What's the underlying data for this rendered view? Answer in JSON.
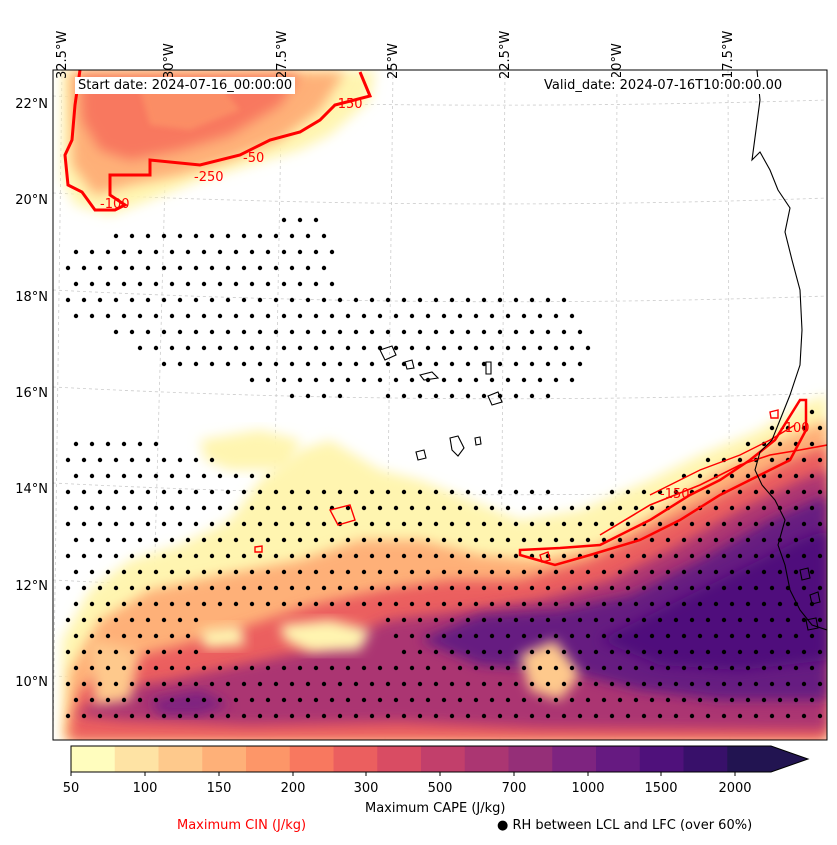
{
  "map": {
    "start_date": "Start date: 2024-07-16_00:00:00",
    "valid_date": "Valid_date: 2024-07-16T10:00:00.00",
    "lon_labels": [
      "32.5°W",
      "30°W",
      "27.5°W",
      "25°W",
      "22.5°W",
      "20°W",
      "17.5°W"
    ],
    "lat_labels": [
      "22°N",
      "20°N",
      "18°N",
      "16°N",
      "14°N",
      "12°N",
      "10°N"
    ],
    "cin_contour_labels": [
      "-150",
      "-50",
      "-250",
      "-100",
      "-100",
      "-150"
    ],
    "colors": {
      "cin_contour": "#ff0000",
      "coastline": "#000000",
      "rh_dots": "#000000",
      "gridlines": "#cccccc"
    }
  },
  "colorbar": {
    "levels": [
      "50",
      "100",
      "150",
      "200",
      "300",
      "500",
      "700",
      "1000",
      "1500",
      "2000"
    ],
    "colors": [
      "#fffdbe",
      "#fee3a4",
      "#fec98c",
      "#feb078",
      "#fd9668",
      "#f8785f",
      "#eb5f5f",
      "#d94c63",
      "#c23f6b",
      "#ab3672",
      "#952f78",
      "#7e2480",
      "#661a81",
      "#4f117b",
      "#38106a",
      "#221451"
    ],
    "extend": "max",
    "title": "Maximum CAPE (J/kg)"
  },
  "legend": {
    "cin_label": "Maximum CIN (J/kg)",
    "rh_label": "● RH between LCL and LFC (over 60%)"
  }
}
